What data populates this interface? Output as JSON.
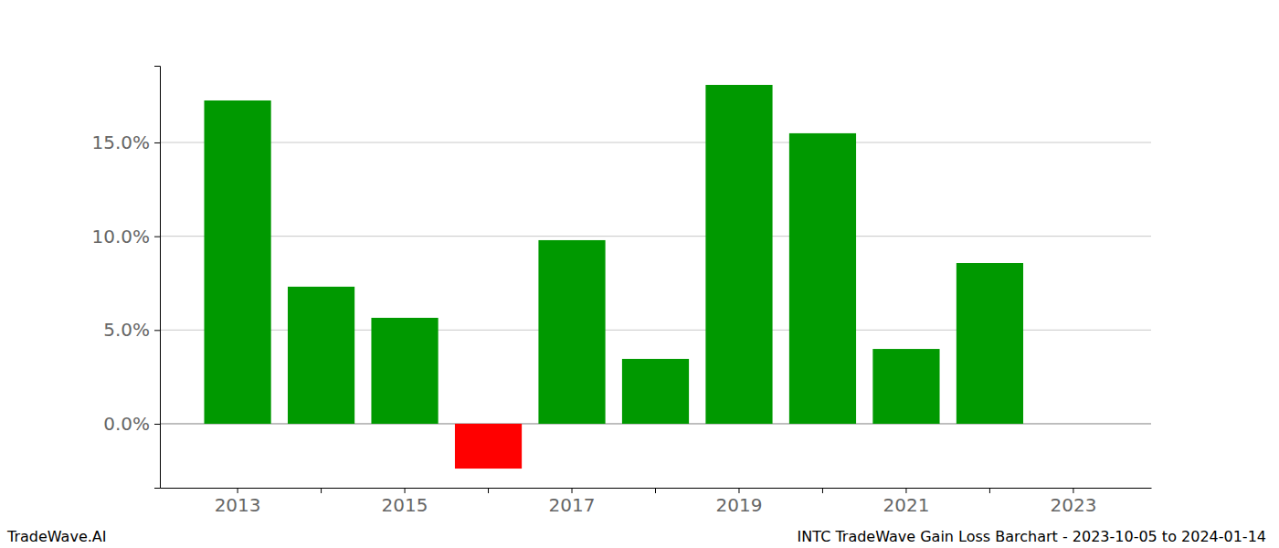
{
  "chart_data": {
    "type": "bar",
    "title": "INTC TradeWave Gain Loss Barchart - 2023-10-05 to 2024-01-14",
    "annotations": [
      "TradeWave.AI"
    ],
    "categories": [
      "2013",
      null,
      "2015",
      null,
      "2017",
      null,
      "2019",
      null,
      "2021",
      null,
      "2023"
    ],
    "values": [
      17.24,
      7.31,
      5.65,
      -2.39,
      9.79,
      3.46,
      18.07,
      15.49,
      3.99,
      8.57,
      null
    ],
    "colors": [
      "#009900",
      "#009900",
      "#009900",
      "#ff0000",
      "#009900",
      "#009900",
      "#009900",
      "#009900",
      "#009900",
      "#009900",
      null
    ],
    "ylim": [
      -3.41,
      19.09
    ],
    "yticks": [
      {
        "value": 0,
        "label": "0.0%"
      },
      {
        "value": 5,
        "label": "5.0%"
      },
      {
        "value": 10,
        "label": "10.0%"
      },
      {
        "value": 15,
        "label": "15.0%"
      }
    ],
    "grid": true
  }
}
